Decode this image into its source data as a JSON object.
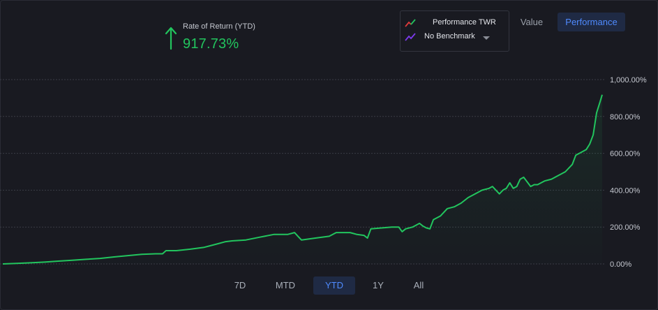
{
  "summary": {
    "label": "Rate of Return (YTD)",
    "value": "917.73%",
    "trend_icon": "arrow-up-icon",
    "trend_color": "#22c55e"
  },
  "legend": {
    "series_label": "Performance TWR",
    "benchmark_label": "No Benchmark"
  },
  "view_toggle": {
    "value_label": "Value",
    "performance_label": "Performance",
    "selected": "Performance"
  },
  "ranges": {
    "items": [
      "7D",
      "MTD",
      "YTD",
      "1Y",
      "All"
    ],
    "selected": "YTD"
  },
  "colors": {
    "line": "#22c55e",
    "accent": "#4f8bff",
    "background": "#191a21"
  },
  "chart_data": {
    "type": "area",
    "title": "",
    "xlabel": "",
    "ylabel": "",
    "ylim": [
      0,
      1000
    ],
    "y_ticks": [
      0,
      200,
      400,
      600,
      800,
      1000
    ],
    "y_tick_labels": [
      "0.00%",
      "200.00%",
      "400.00%",
      "600.00%",
      "800.00%",
      "1,000.00%"
    ],
    "grid": true,
    "series": [
      {
        "name": "Performance TWR",
        "x": [
          0,
          20,
          40,
          60,
          80,
          100,
          120,
          140,
          160,
          180,
          200,
          220,
          230,
          235,
          250,
          270,
          290,
          300,
          310,
          320,
          330,
          350,
          370,
          390,
          410,
          420,
          425,
          430,
          450,
          470,
          480,
          500,
          510,
          520,
          525,
          530,
          545,
          560,
          570,
          575,
          580,
          590,
          600,
          605,
          610,
          615,
          620,
          630,
          640,
          650,
          660,
          670,
          680,
          690,
          700,
          705,
          715,
          720,
          725,
          730,
          735,
          740,
          745,
          750,
          760,
          765,
          770,
          780,
          790,
          800,
          810,
          820,
          825,
          830,
          840,
          845,
          850,
          855,
          860,
          863
        ],
        "y": [
          0,
          3,
          6,
          10,
          15,
          20,
          25,
          30,
          38,
          45,
          52,
          55,
          55,
          72,
          72,
          80,
          90,
          100,
          110,
          120,
          125,
          130,
          145,
          160,
          160,
          170,
          150,
          130,
          140,
          150,
          170,
          170,
          160,
          155,
          140,
          190,
          195,
          200,
          200,
          175,
          190,
          200,
          220,
          205,
          195,
          190,
          240,
          260,
          300,
          310,
          330,
          360,
          380,
          400,
          410,
          420,
          380,
          400,
          410,
          440,
          410,
          420,
          460,
          470,
          420,
          430,
          430,
          450,
          460,
          480,
          500,
          540,
          590,
          600,
          620,
          650,
          700,
          820,
          880,
          917.73
        ]
      }
    ]
  }
}
